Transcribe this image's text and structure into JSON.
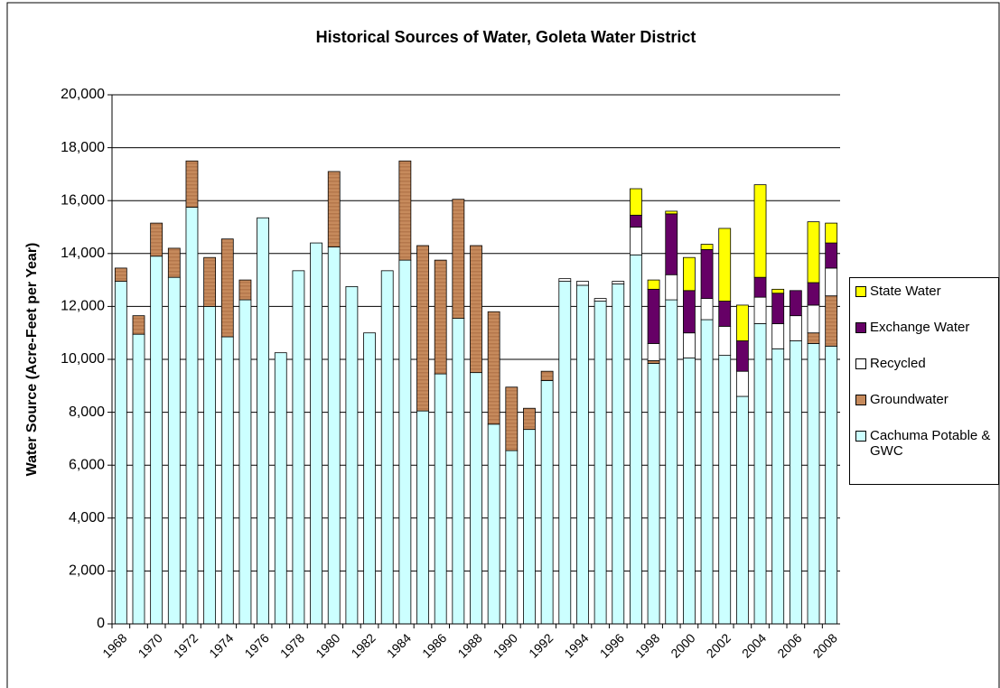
{
  "chart_data": {
    "type": "stacked-bar",
    "title": "Historical Sources of Water, Goleta Water District",
    "y_label": "Water Source (Acre-Feet per Year)",
    "categories": [
      "1968",
      null,
      "1970",
      null,
      "1972",
      null,
      "1974",
      null,
      "1976",
      null,
      "1978",
      null,
      "1980",
      null,
      "1982",
      null,
      "1984",
      null,
      "1986",
      null,
      "1988",
      null,
      "1990",
      null,
      "1992",
      null,
      "1994",
      null,
      "1996",
      null,
      "1998",
      null,
      "2000",
      null,
      "2002",
      null,
      "2004",
      null,
      "2006",
      null,
      "2008"
    ],
    "series": [
      {
        "name": "Cachuma Potable & GWC",
        "color": "#ccffff",
        "values": [
          12950,
          10950,
          13900,
          13100,
          15750,
          12000,
          10850,
          12250,
          15350,
          10250,
          13350,
          14400,
          14250,
          12750,
          11000,
          13350,
          13750,
          8050,
          9450,
          11550,
          9500,
          7550,
          6550,
          7350,
          9200,
          12950,
          12800,
          12200,
          12850,
          13950,
          9850,
          12250,
          10050,
          11500,
          10150,
          8600,
          11350,
          10400,
          10700,
          10600,
          10500
        ]
      },
      {
        "name": "Groundwater",
        "color": "#c68a5c",
        "values": [
          500,
          700,
          1250,
          1100,
          1750,
          1850,
          3700,
          750,
          0,
          0,
          0,
          0,
          2850,
          0,
          0,
          0,
          3750,
          6250,
          4300,
          4500,
          4800,
          4250,
          2400,
          800,
          350,
          0,
          0,
          0,
          0,
          0,
          100,
          0,
          0,
          0,
          0,
          0,
          0,
          0,
          0,
          400,
          1900
        ]
      },
      {
        "name": "Recycled",
        "color": "#ffffff",
        "values": [
          0,
          0,
          0,
          0,
          0,
          0,
          0,
          0,
          0,
          0,
          0,
          0,
          0,
          0,
          0,
          0,
          0,
          0,
          0,
          0,
          0,
          0,
          0,
          0,
          0,
          100,
          150,
          100,
          100,
          1050,
          650,
          950,
          950,
          800,
          1100,
          950,
          1000,
          950,
          950,
          1050,
          1050
        ]
      },
      {
        "name": "Exchange Water",
        "color": "#660066",
        "values": [
          0,
          0,
          0,
          0,
          0,
          0,
          0,
          0,
          0,
          0,
          0,
          0,
          0,
          0,
          0,
          0,
          0,
          0,
          0,
          0,
          0,
          0,
          0,
          0,
          0,
          0,
          0,
          0,
          0,
          450,
          2050,
          2300,
          1600,
          1850,
          950,
          1150,
          750,
          1150,
          950,
          850,
          950
        ]
      },
      {
        "name": "State Water",
        "color": "#ffff00",
        "values": [
          0,
          0,
          0,
          0,
          0,
          0,
          0,
          0,
          0,
          0,
          0,
          0,
          0,
          0,
          0,
          0,
          0,
          0,
          0,
          0,
          0,
          0,
          0,
          0,
          0,
          0,
          0,
          0,
          0,
          1000,
          350,
          100,
          1250,
          200,
          2750,
          1350,
          3500,
          150,
          0,
          2300,
          750
        ]
      }
    ],
    "ylim": [
      0,
      20000
    ],
    "yticks": [
      0,
      {
        "value": 2000,
        "label": "2,000"
      },
      {
        "value": 4000,
        "label": "4,000"
      },
      {
        "value": 6000,
        "label": "6,000"
      },
      {
        "value": 8000,
        "label": "8,000"
      },
      {
        "value": 10000,
        "label": "10,000"
      },
      {
        "value": 12000,
        "label": "12,000"
      },
      {
        "value": 14000,
        "label": "14,000"
      },
      {
        "value": 16000,
        "label": "16,000"
      },
      {
        "value": 18000,
        "label": "18,000"
      },
      {
        "value": 20000,
        "label": "20,000"
      }
    ],
    "grid": true,
    "legend": "right"
  }
}
